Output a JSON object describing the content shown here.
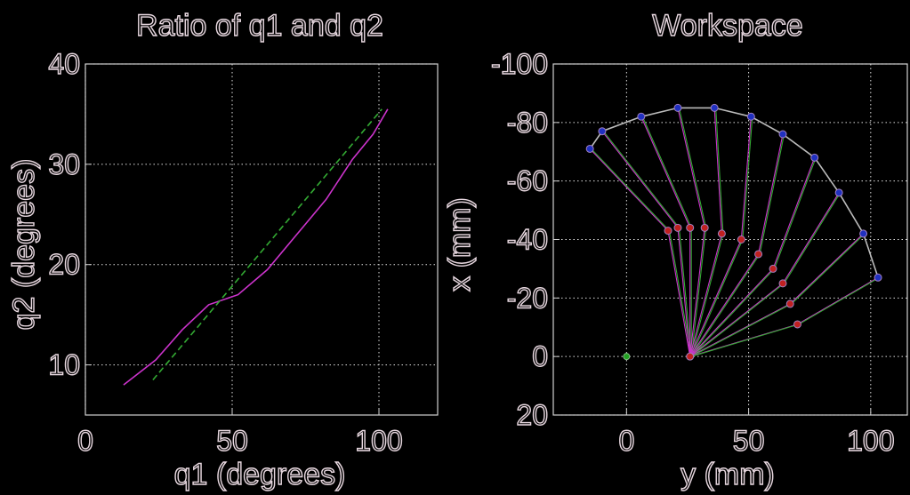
{
  "chart_data": [
    {
      "type": "line",
      "title": "Ratio of q1 and q2",
      "xlabel": "q1 (degrees)",
      "ylabel": "q2 (degrees)",
      "xlim": [
        0,
        120
      ],
      "ylim": [
        5,
        40
      ],
      "xticks": [
        "0",
        "50",
        "100"
      ],
      "yticks": [
        "10",
        "20",
        "30",
        "40"
      ],
      "grid": true,
      "series": [
        {
          "color": "#cc33cc",
          "style": "solid",
          "x": [
            13,
            24,
            33,
            42,
            52,
            62,
            72,
            82,
            91,
            98,
            103
          ],
          "y": [
            8.0,
            10.5,
            13.5,
            16.0,
            17.0,
            19.5,
            23.0,
            26.5,
            30.5,
            33.0,
            35.5
          ]
        },
        {
          "color": "#33aa33",
          "style": "dashed",
          "x": [
            23,
            101
          ],
          "y": [
            8.5,
            35.5
          ]
        }
      ]
    },
    {
      "type": "line",
      "title": "Workspace",
      "xlabel": "y (mm)",
      "ylabel": "x (mm)",
      "xlim": [
        -30,
        115
      ],
      "ylim": [
        20,
        -100
      ],
      "xticks": [
        "0",
        "50",
        "100"
      ],
      "yticks": [
        "-100",
        "-80",
        "-60",
        "-40",
        "-20",
        "0",
        "20"
      ],
      "grid": true,
      "base_point": [
        26,
        0
      ],
      "origin_marker": [
        0,
        0
      ],
      "elbow_points": [
        [
          17,
          -43
        ],
        [
          21,
          -44
        ],
        [
          26,
          -44
        ],
        [
          32,
          -44
        ],
        [
          39,
          -42
        ],
        [
          47,
          -40
        ],
        [
          54,
          -35
        ],
        [
          60,
          -30
        ],
        [
          64,
          -25
        ],
        [
          67,
          -18
        ],
        [
          70,
          -11
        ]
      ],
      "tip_points": [
        [
          -15,
          -71
        ],
        [
          -10,
          -77
        ],
        [
          6,
          -82
        ],
        [
          21,
          -85
        ],
        [
          36,
          -85
        ],
        [
          51,
          -82
        ],
        [
          64,
          -76
        ],
        [
          77,
          -68
        ],
        [
          87,
          -56
        ],
        [
          97,
          -42
        ],
        [
          103,
          -27
        ]
      ],
      "envelope_color": "#bbbbbb",
      "link_colors": [
        "#cc33cc",
        "#33aa33"
      ]
    }
  ]
}
